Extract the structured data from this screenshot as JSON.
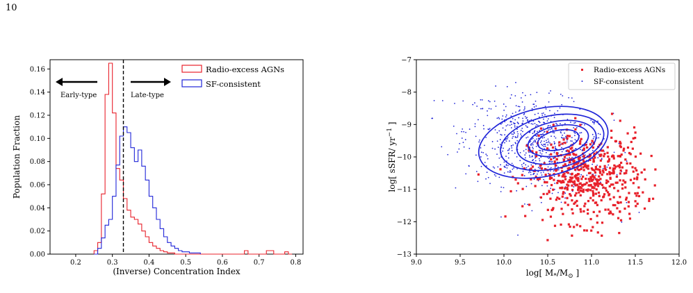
{
  "page_number": "10",
  "chart_data": [
    {
      "type": "histogram",
      "xlabel": "(Inverse) Concentration Index",
      "ylabel": "Population Fraction",
      "xlim": [
        0.13,
        0.82
      ],
      "ylim": [
        0,
        0.168
      ],
      "xticks": [
        "0.2",
        "0.3",
        "0.4",
        "0.5",
        "0.6",
        "0.7",
        "0.8"
      ],
      "yticks": [
        "0.00",
        "0.02",
        "0.04",
        "0.06",
        "0.08",
        "0.10",
        "0.12",
        "0.14",
        "0.16"
      ],
      "bin_width": 0.01,
      "divider_x": 0.33,
      "annotations": [
        "Early-type",
        "Late-type"
      ],
      "legend_position": "upper right",
      "series": [
        {
          "name": "Radio-excess AGNs",
          "color": "#e8202a",
          "bin_start": 0.25,
          "values": [
            0.003,
            0.01,
            0.052,
            0.138,
            0.165,
            0.122,
            0.074,
            0.064,
            0.048,
            0.038,
            0.032,
            0.03,
            0.026,
            0.02,
            0.015,
            0.01,
            0.007,
            0.005,
            0.003,
            0.002,
            0.001,
            0.001,
            0.0,
            0.0,
            0.0,
            0.0,
            0.0,
            0.0,
            0.0,
            0.0,
            0.0,
            0.0,
            0.0,
            0.0,
            0.0,
            0.0,
            0.0,
            0.0,
            0.0,
            0.0,
            0.0,
            0.003,
            0.0,
            0.0,
            0.0,
            0.0,
            0.0,
            0.003,
            0.003,
            0.0,
            0.0,
            0.0,
            0.002,
            0.0
          ]
        },
        {
          "name": "SF-consistent",
          "color": "#1f24d8",
          "bin_start": 0.25,
          "values": [
            0.0,
            0.005,
            0.014,
            0.025,
            0.03,
            0.05,
            0.077,
            0.102,
            0.11,
            0.105,
            0.092,
            0.08,
            0.09,
            0.076,
            0.064,
            0.05,
            0.04,
            0.03,
            0.022,
            0.015,
            0.01,
            0.007,
            0.005,
            0.003,
            0.002,
            0.002,
            0.001,
            0.001,
            0.001
          ]
        }
      ]
    },
    {
      "type": "scatter",
      "xlabel": "log[ M*/M⊙ ]",
      "ylabel": "log[ sSFR/ yr⁻¹ ]",
      "xlim": [
        9.0,
        12.0
      ],
      "ylim": [
        -13,
        -7
      ],
      "xticks": [
        "9.0",
        "9.5",
        "10.0",
        "10.5",
        "11.0",
        "11.5",
        "12.0"
      ],
      "yticks": [
        "−13",
        "−12",
        "−11",
        "−10",
        "−9",
        "−8",
        "−7"
      ],
      "legend_position": "upper right",
      "series": [
        {
          "name": "Radio-excess AGNs",
          "color": "#e8202a",
          "marker": "square",
          "count": 560,
          "center": [
            10.95,
            -10.65
          ],
          "spread": [
            0.33,
            0.68
          ],
          "x_range": [
            9.6,
            11.75
          ]
        },
        {
          "name": "SF-consistent",
          "color": "#1f24d8",
          "marker": "dot",
          "count": 760,
          "center": [
            10.4,
            -9.65
          ],
          "spread": [
            0.42,
            0.72
          ],
          "x_range": [
            9.1,
            11.7
          ]
        }
      ],
      "contours": {
        "color": "#1f24d8",
        "levels": [
          {
            "center": [
              10.45,
              -9.55
            ],
            "half_width": [
              0.75,
              1.05
            ],
            "tilt_deg": -12
          },
          {
            "center": [
              10.55,
              -9.55
            ],
            "half_width": [
              0.6,
              0.82
            ],
            "tilt_deg": -12
          },
          {
            "center": [
              10.6,
              -9.55
            ],
            "half_width": [
              0.46,
              0.64
            ],
            "tilt_deg": -12
          },
          {
            "center": [
              10.62,
              -9.5
            ],
            "half_width": [
              0.35,
              0.46
            ],
            "tilt_deg": -12
          },
          {
            "center": [
              10.62,
              -9.48
            ],
            "half_width": [
              0.24,
              0.3
            ],
            "tilt_deg": -12
          }
        ]
      }
    }
  ]
}
